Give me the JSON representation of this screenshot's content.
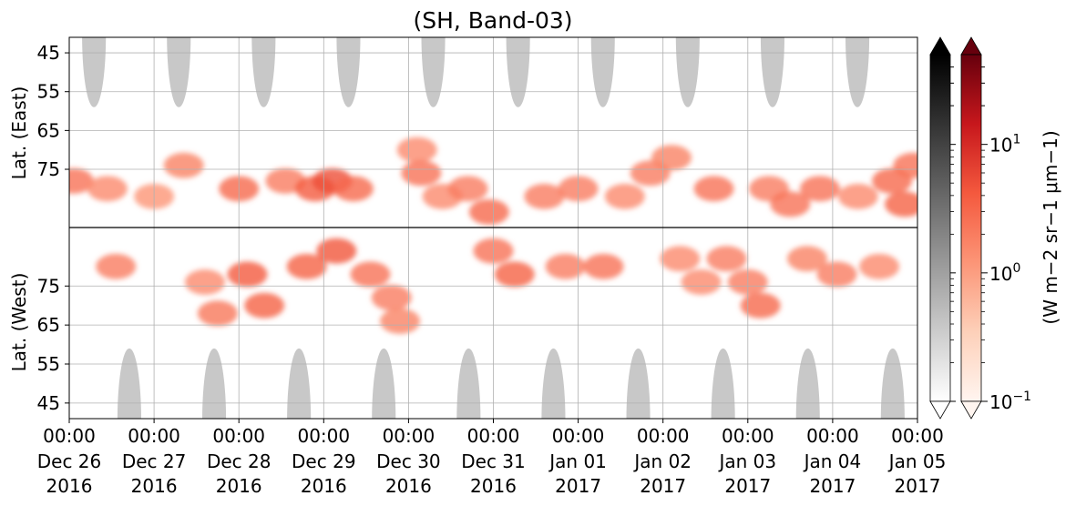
{
  "chart_data": {
    "type": "heatmap",
    "title": "(SH, Band-03)",
    "xlabel": "",
    "ylabel_top": "Lat. (East)",
    "ylabel_bottom": "Lat. (West)",
    "grid": true,
    "x_range": [
      "2016-12-26T00:00",
      "2017-01-05T00:00"
    ],
    "x_ticks": [
      {
        "time": "00:00",
        "date": "Dec 26",
        "year": "2016"
      },
      {
        "time": "00:00",
        "date": "Dec 27",
        "year": "2016"
      },
      {
        "time": "00:00",
        "date": "Dec 28",
        "year": "2016"
      },
      {
        "time": "00:00",
        "date": "Dec 29",
        "year": "2016"
      },
      {
        "time": "00:00",
        "date": "Dec 30",
        "year": "2016"
      },
      {
        "time": "00:00",
        "date": "Dec 31",
        "year": "2016"
      },
      {
        "time": "00:00",
        "date": "Jan 01",
        "year": "2017"
      },
      {
        "time": "00:00",
        "date": "Jan 02",
        "year": "2017"
      },
      {
        "time": "00:00",
        "date": "Jan 03",
        "year": "2017"
      },
      {
        "time": "00:00",
        "date": "Jan 04",
        "year": "2017"
      },
      {
        "time": "00:00",
        "date": "Jan 05",
        "year": "2017"
      }
    ],
    "y_ticks_east": [
      "45",
      "55",
      "65",
      "75"
    ],
    "y_ticks_west": [
      "75",
      "65",
      "55",
      "45"
    ],
    "y_range_latitude": [
      40,
      90
    ],
    "daylight_gray_region": {
      "east_day_centers": [
        "2016-12-26T07:00",
        "2016-12-27T07:00",
        "2016-12-28T07:00",
        "2016-12-29T07:00",
        "2016-12-30T07:00",
        "2016-12-31T07:00",
        "2017-01-01T07:00",
        "2017-01-02T07:00",
        "2017-01-03T07:00",
        "2017-01-04T07:00"
      ],
      "west_day_centers": [
        "2016-12-26T17:00",
        "2016-12-27T17:00",
        "2016-12-28T17:00",
        "2016-12-29T17:00",
        "2016-12-30T17:00",
        "2016-12-31T17:00",
        "2017-01-01T17:00",
        "2017-01-02T17:00",
        "2017-01-03T17:00",
        "2017-01-04T17:00"
      ],
      "edge_latitude": 59,
      "color": "#c8c8c8"
    },
    "colorbars": [
      {
        "name": "gray",
        "scale": "log",
        "extend": "both",
        "colors": [
          "#ffffff",
          "#000000"
        ]
      },
      {
        "name": "reds",
        "scale": "log",
        "extend": "both",
        "colors": [
          "#fff5f0",
          "#67000d"
        ],
        "ticks": [
          "10^-1",
          "10^0",
          "10^1"
        ],
        "vmin": 0.1,
        "vmax": 50,
        "label": "(W m^-2 sr^-1 μm^-1)"
      }
    ],
    "colorbar_tick_labels": [
      {
        "base": "10",
        "exp": "1"
      },
      {
        "base": "10",
        "exp": "0"
      },
      {
        "base": "10",
        "exp": "−1"
      }
    ],
    "colorbar_label": "(W m−2 sr−1 μm−1)",
    "auroral_blobs": [
      {
        "day": 0.05,
        "lat_east": 78,
        "v": 2.5
      },
      {
        "day": 0.45,
        "lat_east": 80,
        "v": 1.5
      },
      {
        "day": 0.55,
        "lat_west": 80,
        "v": 2.0
      },
      {
        "day": 1.0,
        "lat_east": 82,
        "v": 1.2
      },
      {
        "day": 1.35,
        "lat_east": 74,
        "v": 1.8
      },
      {
        "day": 1.6,
        "lat_west": 76,
        "v": 1.5
      },
      {
        "day": 1.75,
        "lat_west": 68,
        "v": 2.2
      },
      {
        "day": 2.0,
        "lat_east": 80,
        "v": 3.0
      },
      {
        "day": 2.1,
        "lat_west": 78,
        "v": 4.0
      },
      {
        "day": 2.3,
        "lat_west": 70,
        "v": 3.5
      },
      {
        "day": 2.55,
        "lat_east": 78,
        "v": 2.0
      },
      {
        "day": 2.8,
        "lat_west": 80,
        "v": 3.5
      },
      {
        "day": 2.9,
        "lat_east": 80,
        "v": 4.0
      },
      {
        "day": 3.1,
        "lat_east": 78,
        "v": 5.0
      },
      {
        "day": 3.15,
        "lat_west": 84,
        "v": 4.5
      },
      {
        "day": 3.35,
        "lat_east": 80,
        "v": 3.0
      },
      {
        "day": 3.55,
        "lat_west": 78,
        "v": 2.5
      },
      {
        "day": 3.8,
        "lat_west": 72,
        "v": 2.0
      },
      {
        "day": 3.9,
        "lat_west": 66,
        "v": 1.8
      },
      {
        "day": 4.1,
        "lat_east": 70,
        "v": 1.5
      },
      {
        "day": 4.15,
        "lat_east": 76,
        "v": 2.5
      },
      {
        "day": 4.4,
        "lat_east": 82,
        "v": 1.5
      },
      {
        "day": 4.7,
        "lat_east": 80,
        "v": 2.0
      },
      {
        "day": 4.95,
        "lat_east": 86,
        "v": 3.0
      },
      {
        "day": 5.0,
        "lat_west": 84,
        "v": 2.5
      },
      {
        "day": 5.25,
        "lat_west": 78,
        "v": 3.5
      },
      {
        "day": 5.6,
        "lat_east": 82,
        "v": 2.0
      },
      {
        "day": 5.85,
        "lat_west": 80,
        "v": 2.0
      },
      {
        "day": 6.0,
        "lat_east": 80,
        "v": 2.0
      },
      {
        "day": 6.3,
        "lat_west": 80,
        "v": 2.5
      },
      {
        "day": 6.55,
        "lat_east": 82,
        "v": 1.5
      },
      {
        "day": 6.85,
        "lat_east": 76,
        "v": 2.0
      },
      {
        "day": 7.1,
        "lat_east": 72,
        "v": 1.8
      },
      {
        "day": 7.2,
        "lat_west": 82,
        "v": 1.5
      },
      {
        "day": 7.45,
        "lat_west": 76,
        "v": 1.5
      },
      {
        "day": 7.6,
        "lat_east": 80,
        "v": 2.5
      },
      {
        "day": 7.75,
        "lat_west": 82,
        "v": 2.0
      },
      {
        "day": 8.0,
        "lat_west": 76,
        "v": 2.0
      },
      {
        "day": 8.15,
        "lat_west": 70,
        "v": 3.0
      },
      {
        "day": 8.25,
        "lat_east": 80,
        "v": 2.0
      },
      {
        "day": 8.5,
        "lat_east": 84,
        "v": 2.5
      },
      {
        "day": 8.7,
        "lat_west": 82,
        "v": 1.8
      },
      {
        "day": 8.85,
        "lat_east": 80,
        "v": 2.5
      },
      {
        "day": 9.05,
        "lat_west": 78,
        "v": 2.0
      },
      {
        "day": 9.3,
        "lat_east": 82,
        "v": 1.5
      },
      {
        "day": 9.55,
        "lat_west": 80,
        "v": 1.5
      },
      {
        "day": 9.7,
        "lat_east": 78,
        "v": 3.0
      },
      {
        "day": 9.85,
        "lat_east": 84,
        "v": 3.5
      },
      {
        "day": 9.95,
        "lat_east": 74,
        "v": 2.5
      }
    ]
  }
}
